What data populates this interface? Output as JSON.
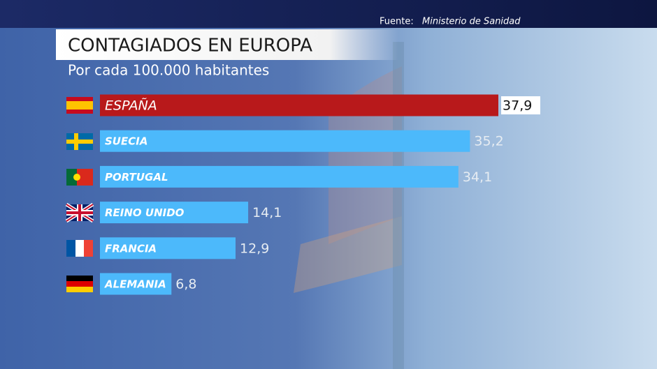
{
  "chart_data": {
    "type": "bar",
    "orientation": "horizontal",
    "source_label": "Fuente:",
    "source": "Ministerio de Sanidad",
    "title": "CONTAGIADOS EN EUROPA",
    "subtitle": "Por cada 100.000 habitantes",
    "categories": [
      "ESPAÑA",
      "SUECIA",
      "PORTUGAL",
      "REINO UNIDO",
      "FRANCIA",
      "ALEMANIA"
    ],
    "values": [
      37.9,
      35.2,
      34.1,
      14.1,
      12.9,
      6.8
    ],
    "value_labels": [
      "37,9",
      "35,2",
      "34,1",
      "14,1",
      "12,9",
      "6,8"
    ],
    "colors": [
      "#b8191b",
      "#4cb9fb",
      "#4cb9fb",
      "#4cb9fb",
      "#4cb9fb",
      "#4cb9fb"
    ]
  }
}
